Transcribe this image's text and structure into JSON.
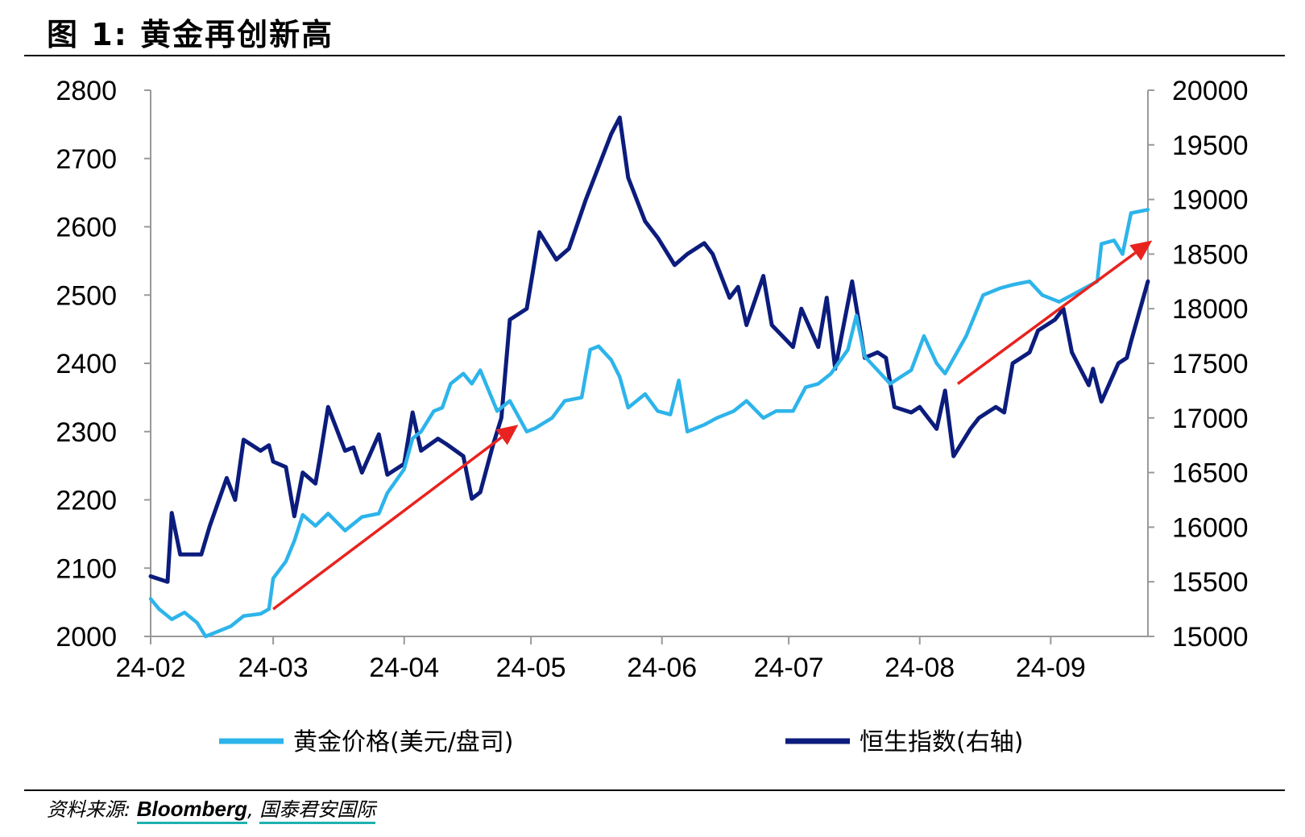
{
  "figure": {
    "title": "图 1:  黄金再创新高",
    "source_label": "资料来源:",
    "source_name": "Bloomberg",
    "source_sep": ",",
    "source_org": "国泰君安国际"
  },
  "colors": {
    "gold_series": "#2db4ea",
    "hsi_series": "#0c1c7c",
    "arrow": "#e8231f",
    "axis": "#999999",
    "teal_underline": "#1fb0b0"
  },
  "chart_data": {
    "type": "line",
    "title": "",
    "xlabel": "",
    "ylabel": "",
    "y2label": "",
    "x_tick_labels": [
      "24-02",
      "24-03",
      "24-04",
      "24-05",
      "24-06",
      "24-07",
      "24-08",
      "24-09"
    ],
    "x_range": [
      "2024-02-01",
      "2024-09-24"
    ],
    "ylim_left": [
      2000,
      2800
    ],
    "yticks_left": [
      2000,
      2100,
      2200,
      2300,
      2400,
      2500,
      2600,
      2700,
      2800
    ],
    "ylim_right": [
      15000,
      20000
    ],
    "yticks_right": [
      15000,
      15500,
      16000,
      16500,
      17000,
      17500,
      18000,
      18500,
      19000,
      19500,
      20000
    ],
    "grid": false,
    "legend_position": "bottom",
    "series": [
      {
        "name": "黄金价格(美元/盘司)",
        "axis": "left",
        "color": "#2db4ea",
        "x": [
          "2024-02-01",
          "2024-02-03",
          "2024-02-06",
          "2024-02-09",
          "2024-02-12",
          "2024-02-14",
          "2024-02-16",
          "2024-02-20",
          "2024-02-23",
          "2024-02-27",
          "2024-02-29",
          "2024-03-01",
          "2024-03-04",
          "2024-03-06",
          "2024-03-08",
          "2024-03-11",
          "2024-03-14",
          "2024-03-18",
          "2024-03-20",
          "2024-03-22",
          "2024-03-26",
          "2024-03-28",
          "2024-04-01",
          "2024-04-03",
          "2024-04-05",
          "2024-04-08",
          "2024-04-10",
          "2024-04-12",
          "2024-04-15",
          "2024-04-17",
          "2024-04-19",
          "2024-04-23",
          "2024-04-26",
          "2024-04-30",
          "2024-05-02",
          "2024-05-06",
          "2024-05-09",
          "2024-05-13",
          "2024-05-15",
          "2024-05-17",
          "2024-05-20",
          "2024-05-22",
          "2024-05-24",
          "2024-05-28",
          "2024-05-31",
          "2024-06-03",
          "2024-06-05",
          "2024-06-07",
          "2024-06-11",
          "2024-06-14",
          "2024-06-18",
          "2024-06-21",
          "2024-06-25",
          "2024-06-28",
          "2024-07-02",
          "2024-07-05",
          "2024-07-08",
          "2024-07-11",
          "2024-07-15",
          "2024-07-17",
          "2024-07-19",
          "2024-07-22",
          "2024-07-25",
          "2024-07-30",
          "2024-08-02",
          "2024-08-05",
          "2024-08-07",
          "2024-08-12",
          "2024-08-16",
          "2024-08-20",
          "2024-08-23",
          "2024-08-27",
          "2024-08-30",
          "2024-09-03",
          "2024-09-06",
          "2024-09-09",
          "2024-09-12",
          "2024-09-13",
          "2024-09-16",
          "2024-09-18",
          "2024-09-20",
          "2024-09-24"
        ],
        "values": [
          2055,
          2040,
          2025,
          2035,
          2020,
          2000,
          2005,
          2015,
          2030,
          2033,
          2040,
          2085,
          2110,
          2140,
          2178,
          2162,
          2180,
          2155,
          2165,
          2175,
          2180,
          2210,
          2245,
          2290,
          2300,
          2330,
          2335,
          2370,
          2385,
          2370,
          2390,
          2330,
          2345,
          2300,
          2305,
          2320,
          2345,
          2350,
          2420,
          2425,
          2405,
          2380,
          2335,
          2355,
          2330,
          2325,
          2375,
          2300,
          2310,
          2320,
          2330,
          2345,
          2320,
          2330,
          2330,
          2365,
          2370,
          2385,
          2420,
          2470,
          2410,
          2390,
          2370,
          2390,
          2440,
          2400,
          2385,
          2440,
          2500,
          2510,
          2515,
          2520,
          2500,
          2490,
          2500,
          2510,
          2520,
          2575,
          2580,
          2560,
          2620,
          2625
        ]
      },
      {
        "name": "恒生指数(右轴)",
        "axis": "right",
        "color": "#0c1c7c",
        "x": [
          "2024-02-01",
          "2024-02-05",
          "2024-02-06",
          "2024-02-08",
          "2024-02-13",
          "2024-02-15",
          "2024-02-19",
          "2024-02-21",
          "2024-02-23",
          "2024-02-27",
          "2024-02-29",
          "2024-03-01",
          "2024-03-04",
          "2024-03-06",
          "2024-03-08",
          "2024-03-11",
          "2024-03-12",
          "2024-03-14",
          "2024-03-18",
          "2024-03-20",
          "2024-03-22",
          "2024-03-26",
          "2024-03-28",
          "2024-04-01",
          "2024-04-03",
          "2024-04-05",
          "2024-04-09",
          "2024-04-11",
          "2024-04-15",
          "2024-04-17",
          "2024-04-19",
          "2024-04-22",
          "2024-04-24",
          "2024-04-26",
          "2024-04-30",
          "2024-05-03",
          "2024-05-07",
          "2024-05-10",
          "2024-05-14",
          "2024-05-16",
          "2024-05-20",
          "2024-05-22",
          "2024-05-24",
          "2024-05-28",
          "2024-05-31",
          "2024-06-04",
          "2024-06-07",
          "2024-06-11",
          "2024-06-13",
          "2024-06-17",
          "2024-06-19",
          "2024-06-21",
          "2024-06-25",
          "2024-06-27",
          "2024-07-02",
          "2024-07-04",
          "2024-07-08",
          "2024-07-10",
          "2024-07-12",
          "2024-07-16",
          "2024-07-19",
          "2024-07-22",
          "2024-07-24",
          "2024-07-26",
          "2024-07-30",
          "2024-08-01",
          "2024-08-05",
          "2024-08-07",
          "2024-08-09",
          "2024-08-13",
          "2024-08-15",
          "2024-08-19",
          "2024-08-21",
          "2024-08-23",
          "2024-08-27",
          "2024-08-29",
          "2024-09-02",
          "2024-09-04",
          "2024-09-06",
          "2024-09-10",
          "2024-09-11",
          "2024-09-13",
          "2024-09-17",
          "2024-09-19",
          "2024-09-20",
          "2024-09-24"
        ],
        "values": [
          15550,
          15500,
          16130,
          15750,
          15750,
          16010,
          16450,
          16250,
          16800,
          16700,
          16750,
          16600,
          16550,
          16100,
          16500,
          16400,
          16620,
          17100,
          16700,
          16730,
          16500,
          16850,
          16480,
          16580,
          17050,
          16700,
          16810,
          16760,
          16650,
          16260,
          16320,
          16750,
          17000,
          17900,
          18000,
          18700,
          18450,
          18550,
          19000,
          19200,
          19600,
          19750,
          19200,
          18800,
          18650,
          18400,
          18500,
          18600,
          18500,
          18100,
          18200,
          17850,
          18300,
          17850,
          17650,
          18000,
          17650,
          18100,
          17450,
          18250,
          17550,
          17600,
          17550,
          17100,
          17050,
          17100,
          16900,
          17250,
          16650,
          16900,
          17000,
          17100,
          17050,
          17500,
          17600,
          17800,
          17900,
          18000,
          17600,
          17300,
          17450,
          17150,
          17500,
          17550,
          17700,
          18250
        ]
      }
    ],
    "annotations": [
      {
        "type": "arrow",
        "from": [
          "2024-03-01",
          2040
        ],
        "to": [
          "2024-04-28",
          2310
        ]
      },
      {
        "type": "arrow",
        "from": [
          "2024-08-10",
          2370
        ],
        "to": [
          "2024-09-25",
          2580
        ]
      }
    ]
  }
}
